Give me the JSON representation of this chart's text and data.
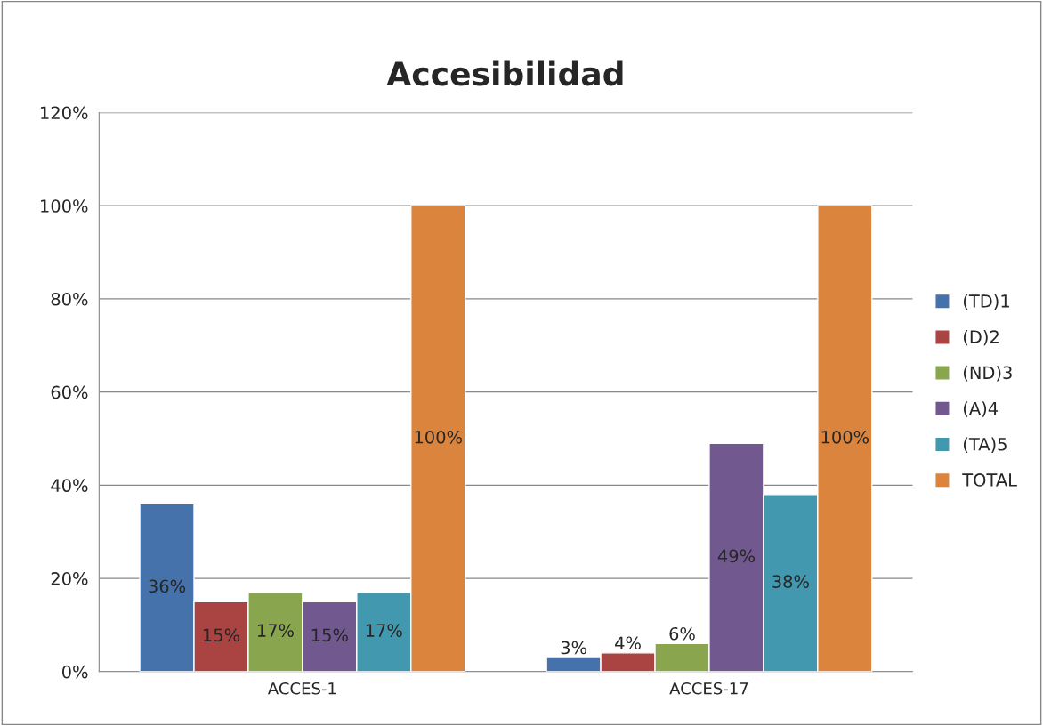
{
  "chart_data": {
    "type": "bar",
    "title": "Accesibilidad",
    "categories": [
      "ACCES-1",
      "ACCES-17"
    ],
    "series": [
      {
        "name": "(TD)1",
        "color": "#4672ac",
        "values": [
          36,
          3
        ],
        "value_labels": [
          "36%",
          "3%"
        ]
      },
      {
        "name": "(D)2",
        "color": "#a94442",
        "values": [
          15,
          4
        ],
        "value_labels": [
          "15%",
          "4%"
        ]
      },
      {
        "name": "(ND)3",
        "color": "#89a54e",
        "values": [
          17,
          6
        ],
        "value_labels": [
          "17%",
          "6%"
        ]
      },
      {
        "name": "(A)4",
        "color": "#71588f",
        "values": [
          15,
          49
        ],
        "value_labels": [
          "15%",
          "49%"
        ]
      },
      {
        "name": "(TA)5",
        "color": "#4198af",
        "values": [
          17,
          38
        ],
        "value_labels": [
          "17%",
          "38%"
        ]
      },
      {
        "name": "TOTAL",
        "color": "#db843d",
        "values": [
          100,
          100
        ],
        "value_labels": [
          "100%",
          "100%"
        ]
      }
    ],
    "ylim": [
      0,
      120
    ],
    "yticks": [
      {
        "value": 0,
        "label": "0%"
      },
      {
        "value": 20,
        "label": "20%"
      },
      {
        "value": 40,
        "label": "40%"
      },
      {
        "value": 60,
        "label": "60%"
      },
      {
        "value": 80,
        "label": "80%"
      },
      {
        "value": 100,
        "label": "100%"
      },
      {
        "value": 120,
        "label": "120%"
      }
    ],
    "grid": "y",
    "legend": "right"
  }
}
